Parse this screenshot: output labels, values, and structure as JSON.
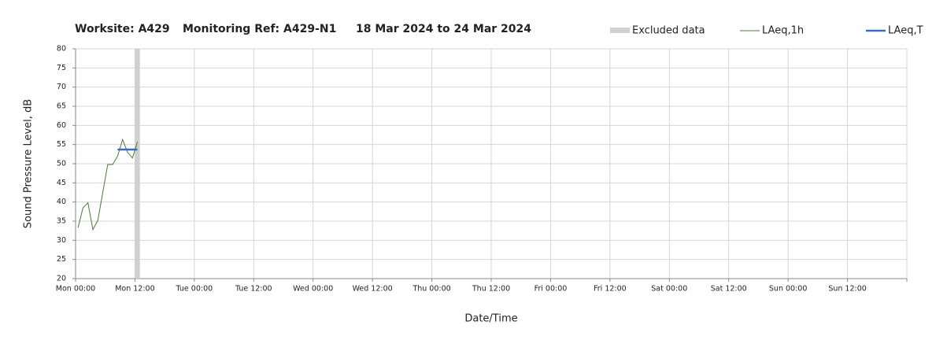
{
  "chart_data": {
    "type": "line",
    "title": "Worksite: A429",
    "subtitle": "Monitoring Ref: A429-N1",
    "date_range": "18 Mar 2024 to 24 Mar 2024",
    "x_label": "Date/Time",
    "y_label": "Sound Pressure Level, dB",
    "xlim": [
      0,
      168
    ],
    "xticks": [
      {
        "value": 0,
        "label": "Mon 00:00"
      },
      {
        "value": 12,
        "label": "Mon 12:00"
      },
      {
        "value": 24,
        "label": "Tue 00:00"
      },
      {
        "value": 36,
        "label": "Tue 12:00"
      },
      {
        "value": 48,
        "label": "Wed 00:00"
      },
      {
        "value": 60,
        "label": "Wed 12:00"
      },
      {
        "value": 72,
        "label": "Thu 00:00"
      },
      {
        "value": 84,
        "label": "Thu 12:00"
      },
      {
        "value": 96,
        "label": "Fri 00:00"
      },
      {
        "value": 108,
        "label": "Fri 12:00"
      },
      {
        "value": 120,
        "label": "Sat 00:00"
      },
      {
        "value": 132,
        "label": "Sat 12:00"
      },
      {
        "value": 144,
        "label": "Sun 00:00"
      },
      {
        "value": 156,
        "label": "Sun 12:00"
      },
      {
        "value": 168,
        "label": ""
      }
    ],
    "ylim": [
      20,
      80
    ],
    "yticks": [
      20,
      25,
      30,
      35,
      40,
      45,
      50,
      55,
      60,
      65,
      70,
      75,
      80
    ],
    "grid": true,
    "excluded": {
      "name": "Excluded data",
      "color": "#d0d0d0",
      "ranges": [
        [
          12,
          13
        ]
      ]
    },
    "series": [
      {
        "name": "LAeq,1h",
        "color": "#4b7a3c",
        "width": 1,
        "x": [
          0.5,
          1.5,
          2.5,
          3.5,
          4.5,
          5.5,
          6.5,
          7.5,
          8.5,
          9.5,
          10.5,
          11.5,
          12.5
        ],
        "values": [
          33.3,
          38.5,
          39.8,
          32.8,
          35.2,
          42.5,
          49.8,
          49.8,
          52.0,
          56.3,
          53.0,
          51.5,
          55.7
        ]
      },
      {
        "name": "LAeq,T",
        "color": "#3d6bb9",
        "width": 2.5,
        "x": [
          8.5,
          12.5
        ],
        "values": [
          53.7,
          53.7
        ]
      }
    ]
  }
}
